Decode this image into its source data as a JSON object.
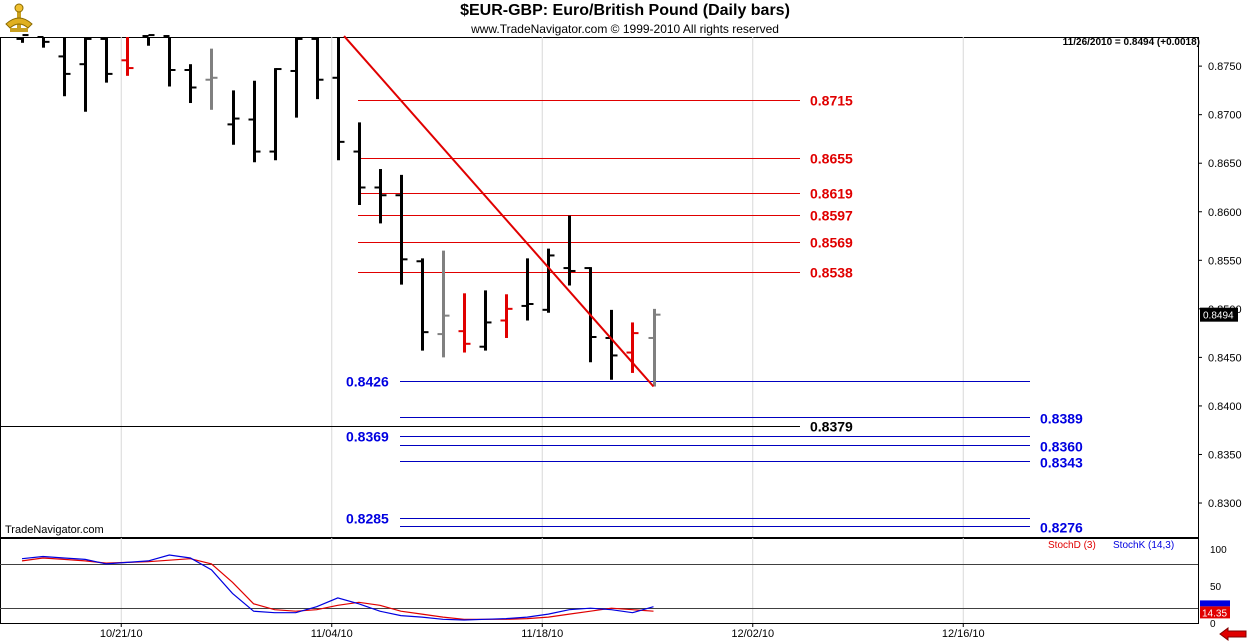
{
  "chart_data": {
    "type": "ohlc",
    "title": "$EUR-GBP:  Euro/British Pound  (Daily bars)",
    "subtitle": "www.TradeNavigator.com © 1999-2010 All rights reserved",
    "watermark": "TradeNavigator.com",
    "last_price_text": "11/26/2010 = 0.8494 (+0.0018)",
    "last_price_tag": "0.8494",
    "x_tick_labels": [
      {
        "label": "10/21/10",
        "bar": 5
      },
      {
        "label": "11/04/10",
        "bar": 15
      },
      {
        "label": "11/18/10",
        "bar": 25
      },
      {
        "label": "12/02/10",
        "bar": 35
      },
      {
        "label": "12/16/10",
        "bar": 45
      }
    ],
    "y_ticks": [
      "0.8750",
      "0.8700",
      "0.8650",
      "0.8600",
      "0.8550",
      "0.8500",
      "0.8450",
      "0.8400",
      "0.8350",
      "0.8300"
    ],
    "ylim": [
      0.8265,
      0.878
    ],
    "bar_colors": {
      "up": "#000000",
      "down": "#000000",
      "gray": "#808080",
      "red": "#e00000"
    },
    "bars": [
      {
        "o": 0.8778,
        "h": 0.879,
        "l": 0.8774,
        "c": 0.8782,
        "color": "black"
      },
      {
        "o": 0.878,
        "h": 0.8785,
        "l": 0.8769,
        "c": 0.8775,
        "color": "black"
      },
      {
        "o": 0.876,
        "h": 0.8782,
        "l": 0.8719,
        "c": 0.8742,
        "color": "black"
      },
      {
        "o": 0.8752,
        "h": 0.8782,
        "l": 0.8703,
        "c": 0.8778,
        "color": "black"
      },
      {
        "o": 0.8778,
        "h": 0.8782,
        "l": 0.8733,
        "c": 0.8742,
        "color": "black"
      },
      {
        "o": 0.8756,
        "h": 0.8782,
        "l": 0.874,
        "c": 0.8748,
        "color": "red"
      },
      {
        "o": 0.8781,
        "h": 0.8784,
        "l": 0.8771,
        "c": 0.8782,
        "color": "black"
      },
      {
        "o": 0.8781,
        "h": 0.8782,
        "l": 0.8729,
        "c": 0.8746,
        "color": "black"
      },
      {
        "o": 0.8746,
        "h": 0.8752,
        "l": 0.8712,
        "c": 0.8728,
        "color": "black"
      },
      {
        "o": 0.8736,
        "h": 0.8768,
        "l": 0.8705,
        "c": 0.8738,
        "color": "gray"
      },
      {
        "o": 0.869,
        "h": 0.8725,
        "l": 0.8669,
        "c": 0.8696,
        "color": "black"
      },
      {
        "o": 0.8695,
        "h": 0.8735,
        "l": 0.8651,
        "c": 0.8662,
        "color": "black"
      },
      {
        "o": 0.8662,
        "h": 0.8748,
        "l": 0.8653,
        "c": 0.8747,
        "color": "black"
      },
      {
        "o": 0.8745,
        "h": 0.878,
        "l": 0.8697,
        "c": 0.8778,
        "color": "black"
      },
      {
        "o": 0.8778,
        "h": 0.8782,
        "l": 0.8716,
        "c": 0.8736,
        "color": "black"
      },
      {
        "o": 0.8738,
        "h": 0.8782,
        "l": 0.8653,
        "c": 0.8672,
        "color": "black"
      },
      {
        "o": 0.8662,
        "h": 0.8692,
        "l": 0.8607,
        "c": 0.8625,
        "color": "black"
      },
      {
        "o": 0.8625,
        "h": 0.8644,
        "l": 0.8588,
        "c": 0.8617,
        "color": "black"
      },
      {
        "o": 0.8617,
        "h": 0.8638,
        "l": 0.8525,
        "c": 0.8551,
        "color": "black"
      },
      {
        "o": 0.8549,
        "h": 0.8552,
        "l": 0.8457,
        "c": 0.8476,
        "color": "black"
      },
      {
        "o": 0.8474,
        "h": 0.856,
        "l": 0.845,
        "c": 0.8493,
        "color": "gray"
      },
      {
        "o": 0.8477,
        "h": 0.8516,
        "l": 0.8455,
        "c": 0.8464,
        "color": "red"
      },
      {
        "o": 0.8461,
        "h": 0.8519,
        "l": 0.8457,
        "c": 0.8486,
        "color": "black"
      },
      {
        "o": 0.8488,
        "h": 0.8515,
        "l": 0.847,
        "c": 0.85,
        "color": "red"
      },
      {
        "o": 0.8503,
        "h": 0.8552,
        "l": 0.8488,
        "c": 0.8505,
        "color": "black"
      },
      {
        "o": 0.8499,
        "h": 0.8562,
        "l": 0.8496,
        "c": 0.8555,
        "color": "black"
      },
      {
        "o": 0.8542,
        "h": 0.8596,
        "l": 0.8524,
        "c": 0.8539,
        "color": "black"
      },
      {
        "o": 0.8542,
        "h": 0.8543,
        "l": 0.8445,
        "c": 0.8471,
        "color": "black"
      },
      {
        "o": 0.847,
        "h": 0.8499,
        "l": 0.8427,
        "c": 0.8452,
        "color": "black"
      },
      {
        "o": 0.8455,
        "h": 0.8486,
        "l": 0.8434,
        "c": 0.8475,
        "color": "red"
      },
      {
        "o": 0.847,
        "h": 0.85,
        "l": 0.842,
        "c": 0.8494,
        "color": "gray"
      }
    ],
    "trendline": {
      "start": {
        "bar": 15.3,
        "price": 0.8781
      },
      "end": {
        "bar": 30.0,
        "price": 0.842
      },
      "color": "#e00000"
    },
    "red_levels": [
      {
        "value": 0.8715,
        "label": "0.8715"
      },
      {
        "value": 0.8655,
        "label": "0.8655"
      },
      {
        "value": 0.8619,
        "label": "0.8619"
      },
      {
        "value": 0.8597,
        "label": "0.8597"
      },
      {
        "value": 0.8569,
        "label": "0.8569"
      },
      {
        "value": 0.8538,
        "label": "0.8538"
      }
    ],
    "blue_levels": [
      {
        "value": 0.8426,
        "label": "0.8426",
        "side": "left"
      },
      {
        "value": 0.8389,
        "label": "0.8389",
        "side": "right"
      },
      {
        "value": 0.8369,
        "label": "0.8369",
        "side": "left"
      },
      {
        "value": 0.836,
        "label": "0.8360",
        "side": "right"
      },
      {
        "value": 0.8343,
        "label": "0.8343",
        "side": "right"
      },
      {
        "value": 0.8285,
        "label": "0.8285",
        "side": "left"
      },
      {
        "value": 0.8276,
        "label": "0.8276",
        "side": "right"
      }
    ],
    "black_level": {
      "value": 0.8379,
      "label": "0.8379"
    },
    "stochastic": {
      "legend": [
        {
          "name": "StochD (3)",
          "color": "#e00000"
        },
        {
          "name": "StochK (14,3)",
          "color": "#0000e0"
        }
      ],
      "y_ticks": [
        "100",
        "50",
        "0"
      ],
      "ylim": [
        0,
        115
      ],
      "levels": [
        80,
        20
      ],
      "last_value_tag": "14.35",
      "stoch_k": [
        87,
        90,
        88,
        86,
        80,
        82,
        84,
        92,
        88,
        72,
        40,
        16,
        14,
        14,
        22,
        34,
        26,
        16,
        10,
        8,
        5,
        4,
        5,
        6,
        8,
        12,
        18,
        20,
        18,
        14,
        22
      ],
      "stoch_d": [
        84,
        88,
        86,
        84,
        81,
        82,
        83,
        85,
        87,
        80,
        55,
        26,
        18,
        16,
        18,
        24,
        28,
        24,
        16,
        12,
        8,
        5,
        5,
        5,
        6,
        8,
        12,
        16,
        20,
        18,
        16
      ]
    }
  }
}
